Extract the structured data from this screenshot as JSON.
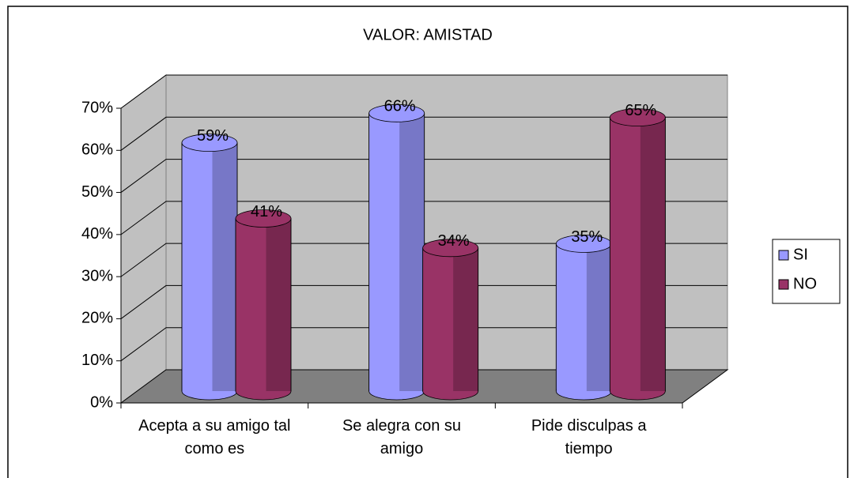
{
  "chart_data": {
    "type": "bar",
    "title": "VALOR: AMISTAD",
    "categories": [
      "Acepta a su amigo tal como es",
      "Se alegra con su amigo",
      "Pide disculpas a tiempo"
    ],
    "series": [
      {
        "name": "SI",
        "color": "#9999ff",
        "values": [
          59,
          66,
          35
        ],
        "value_labels": [
          "59%",
          "66%",
          "35%"
        ]
      },
      {
        "name": "NO",
        "color": "#993366",
        "values": [
          41,
          34,
          65
        ],
        "value_labels": [
          "41%",
          "34%",
          "65%"
        ]
      }
    ],
    "ylim": [
      0,
      70
    ],
    "yticks": [
      {
        "value": 0,
        "label": "0%"
      },
      {
        "value": 10,
        "label": "10%"
      },
      {
        "value": 20,
        "label": "20%"
      },
      {
        "value": 30,
        "label": "30%"
      },
      {
        "value": 40,
        "label": "40%"
      },
      {
        "value": 50,
        "label": "50%"
      },
      {
        "value": 60,
        "label": "60%"
      },
      {
        "value": 70,
        "label": "70%"
      }
    ],
    "grid": true,
    "legend": "right"
  }
}
